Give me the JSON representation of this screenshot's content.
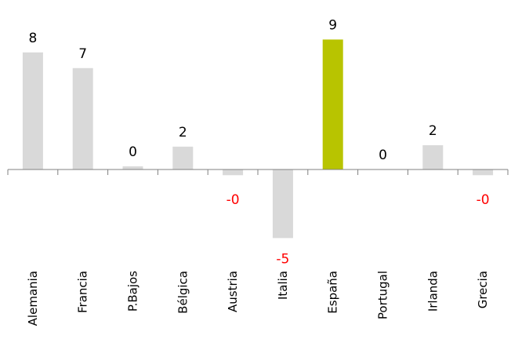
{
  "chart_data": {
    "type": "bar",
    "categories": [
      "Alemania",
      "Francia",
      "P.Bajos",
      "Bélgica",
      "Austria",
      "Italia",
      "España",
      "Portugal",
      "Irlanda",
      "Grecia"
    ],
    "values": [
      8.2,
      7.1,
      0.2,
      1.6,
      -0.4,
      -4.8,
      9.1,
      0,
      1.7,
      -0.4
    ],
    "value_labels": [
      "8",
      "7",
      "0",
      "2",
      "-0",
      "-5",
      "9",
      "0",
      "2",
      "-0"
    ],
    "highlight_category": "España",
    "colors": {
      "bar": "#d9d9d9",
      "highlight": "#b8c400",
      "negative_label": "#ff0000",
      "positive_label": "#000000",
      "axis": "#808080"
    },
    "grid": false,
    "legend": "none"
  }
}
